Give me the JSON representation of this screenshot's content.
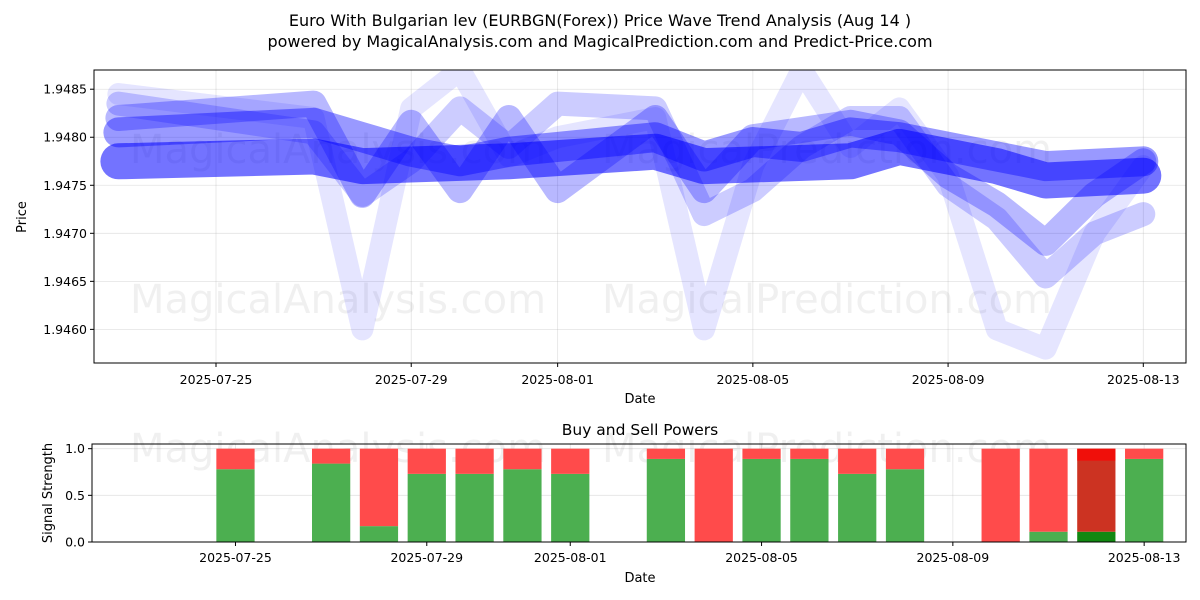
{
  "header": {
    "title_line1": "Euro With Bulgarian lev (EURBGN(Forex)) Price Wave Trend Analysis (Aug 14 )",
    "title_line2": "powered by MagicalAnalysis.com and MagicalPrediction.com and Predict-Price.com"
  },
  "watermarks": {
    "left": "MagicalAnalysis.com",
    "right": "MagicalPrediction.com"
  },
  "colors": {
    "wave": "#0000ff",
    "buy": "#4caf50",
    "sell": "#ff4b4b",
    "sell_dark": "#cc3322",
    "buy_dark": "#118811"
  },
  "chart_data": [
    {
      "type": "line",
      "title": "",
      "xlabel": "Date",
      "ylabel": "Price",
      "xlim": [
        "2025-07-22T12:00",
        "2025-08-13T21:00"
      ],
      "ylim": [
        1.94565,
        1.9487
      ],
      "x_ticks": [
        "2025-07-25",
        "2025-07-29",
        "2025-08-01",
        "2025-08-05",
        "2025-08-09",
        "2025-08-13"
      ],
      "y_ticks": [
        1.946,
        1.9465,
        1.947,
        1.9475,
        1.948,
        1.9485
      ],
      "y_tick_labels": [
        "1.9460",
        "1.9465",
        "1.9470",
        "1.9475",
        "1.9480",
        "1.9485"
      ],
      "grid": true,
      "series": [
        {
          "dates": [
            "2025-07-23",
            "2025-07-27",
            "2025-07-28",
            "2025-07-31",
            "2025-08-03",
            "2025-08-04",
            "2025-08-07",
            "2025-08-08",
            "2025-08-10",
            "2025-08-11",
            "2025-08-13"
          ],
          "values": [
            1.94775,
            1.9478,
            1.9477,
            1.94775,
            1.94785,
            1.9477,
            1.94775,
            1.9479,
            1.9477,
            1.94755,
            1.9476
          ]
        },
        {
          "dates": [
            "2025-07-23",
            "2025-07-27",
            "2025-07-28",
            "2025-07-29",
            "2025-07-30",
            "2025-07-31",
            "2025-08-01",
            "2025-08-03",
            "2025-08-04",
            "2025-08-05",
            "2025-08-06",
            "2025-08-07",
            "2025-08-08",
            "2025-08-10",
            "2025-08-11",
            "2025-08-13"
          ],
          "values": [
            1.94805,
            1.94815,
            1.948,
            1.94785,
            1.94775,
            1.94785,
            1.9479,
            1.948,
            1.9478,
            1.94795,
            1.9479,
            1.94805,
            1.948,
            1.9478,
            1.9477,
            1.94775
          ]
        },
        {
          "dates": [
            "2025-07-23",
            "2025-07-27",
            "2025-07-28",
            "2025-07-29",
            "2025-07-30",
            "2025-07-31",
            "2025-08-01",
            "2025-08-03",
            "2025-08-04",
            "2025-08-05",
            "2025-08-07",
            "2025-08-08",
            "2025-08-09",
            "2025-08-10",
            "2025-08-11",
            "2025-08-12",
            "2025-08-13"
          ],
          "values": [
            1.9482,
            1.94835,
            1.9474,
            1.94815,
            1.94745,
            1.9482,
            1.94745,
            1.9482,
            1.94745,
            1.948,
            1.94815,
            1.94805,
            1.9476,
            1.9473,
            1.9469,
            1.9474,
            1.94775
          ]
        },
        {
          "dates": [
            "2025-07-23",
            "2025-07-27",
            "2025-07-28",
            "2025-07-29",
            "2025-07-30",
            "2025-07-31",
            "2025-08-01",
            "2025-08-03",
            "2025-08-04",
            "2025-08-05",
            "2025-08-06",
            "2025-08-07",
            "2025-08-08",
            "2025-08-09",
            "2025-08-10",
            "2025-08-11",
            "2025-08-12",
            "2025-08-13"
          ],
          "values": [
            1.94835,
            1.94805,
            1.9474,
            1.94775,
            1.9483,
            1.9479,
            1.94835,
            1.9483,
            1.9472,
            1.94745,
            1.9479,
            1.9482,
            1.9482,
            1.9475,
            1.94715,
            1.94655,
            1.947,
            1.9472
          ]
        },
        {
          "dates": [
            "2025-07-23",
            "2025-07-27",
            "2025-07-28",
            "2025-07-29",
            "2025-07-30",
            "2025-07-31",
            "2025-08-01",
            "2025-08-03",
            "2025-08-04",
            "2025-08-05",
            "2025-08-06",
            "2025-08-07",
            "2025-08-08",
            "2025-08-09",
            "2025-08-10",
            "2025-08-11",
            "2025-08-12",
            "2025-08-13"
          ],
          "values": [
            1.94845,
            1.9482,
            1.946,
            1.9483,
            1.9487,
            1.9478,
            1.948,
            1.9482,
            1.946,
            1.9477,
            1.9487,
            1.9479,
            1.9483,
            1.9476,
            1.946,
            1.9458,
            1.947,
            1.9477
          ]
        }
      ]
    },
    {
      "type": "bar",
      "title": "Buy and Sell Powers",
      "xlabel": "Date",
      "ylabel": "Signal Strength",
      "ylim": [
        0,
        1.05
      ],
      "y_ticks": [
        0.0,
        0.5,
        1.0
      ],
      "y_tick_labels": [
        "0.0",
        "0.5",
        "1.0"
      ],
      "x_ticks": [
        "2025-07-25",
        "2025-07-29",
        "2025-08-01",
        "2025-08-05",
        "2025-08-09",
        "2025-08-13"
      ],
      "grid": true,
      "categories": [
        "2025-07-25",
        "2025-07-27",
        "2025-07-28",
        "2025-07-29",
        "2025-07-30",
        "2025-07-31",
        "2025-08-01",
        "2025-08-03",
        "2025-08-04",
        "2025-08-05",
        "2025-08-06",
        "2025-08-07",
        "2025-08-08",
        "2025-08-10",
        "2025-08-11",
        "2025-08-12",
        "2025-08-13"
      ],
      "series": [
        {
          "name": "Buy",
          "values": [
            0.78,
            0.84,
            0.17,
            0.73,
            0.73,
            0.78,
            0.73,
            0.89,
            0.0,
            0.89,
            0.89,
            0.73,
            0.78,
            0.0,
            0.11,
            0.11,
            0.89
          ]
        },
        {
          "name": "Sell",
          "values": [
            0.22,
            0.16,
            0.83,
            0.27,
            0.27,
            0.22,
            0.27,
            0.11,
            1.0,
            0.11,
            0.11,
            0.27,
            0.22,
            1.0,
            0.89,
            0.89,
            0.11
          ]
        }
      ]
    }
  ]
}
